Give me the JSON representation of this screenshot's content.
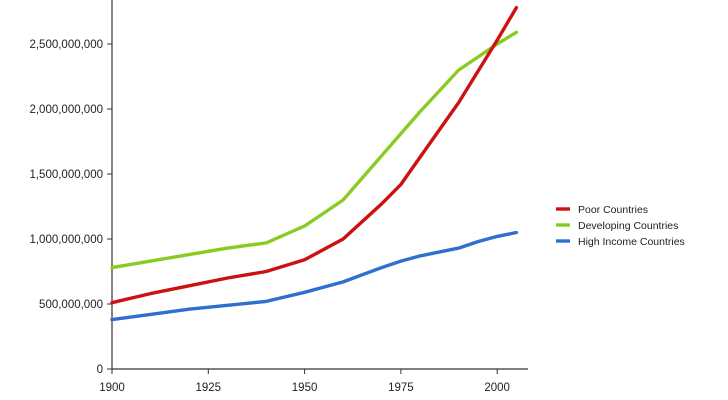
{
  "chart_data": {
    "type": "line",
    "title": "",
    "xlabel": "",
    "ylabel": "",
    "xlim": [
      1900,
      2008
    ],
    "ylim": [
      0,
      2800000000
    ],
    "grid": false,
    "legend_position": "right",
    "x_ticks": [
      1900,
      1925,
      1950,
      1975,
      2000
    ],
    "x_tick_labels": [
      "1900",
      "1925",
      "1950",
      "1975",
      "2000"
    ],
    "y_ticks": [
      0,
      500000000,
      1000000000,
      1500000000,
      2000000000,
      2500000000
    ],
    "y_tick_labels": [
      "0",
      "500,000,000",
      "1,000,000,000",
      "1,500,000,000",
      "2,000,000,000",
      "2,500,000,000"
    ],
    "series": [
      {
        "name": "Poor Countries",
        "color": "#cc1111",
        "x": [
          1900,
          1910,
          1920,
          1930,
          1940,
          1950,
          1960,
          1970,
          1975,
          1980,
          1990,
          2000,
          2005
        ],
        "y": [
          510000000,
          580000000,
          640000000,
          700000000,
          750000000,
          840000000,
          1000000000,
          1270000000,
          1420000000,
          1630000000,
          2050000000,
          2530000000,
          2780000000
        ]
      },
      {
        "name": "Developing Countries",
        "color": "#88cc22",
        "x": [
          1900,
          1910,
          1920,
          1930,
          1940,
          1950,
          1960,
          1970,
          1980,
          1990,
          2000,
          2005
        ],
        "y": [
          780000000,
          830000000,
          880000000,
          930000000,
          970000000,
          1100000000,
          1300000000,
          1640000000,
          1980000000,
          2300000000,
          2500000000,
          2590000000
        ]
      },
      {
        "name": "High Income Countries",
        "color": "#2f6fd0",
        "x": [
          1900,
          1910,
          1920,
          1930,
          1940,
          1950,
          1960,
          1970,
          1975,
          1980,
          1990,
          1995,
          2000,
          2005
        ],
        "y": [
          380000000,
          420000000,
          460000000,
          490000000,
          520000000,
          590000000,
          670000000,
          780000000,
          830000000,
          870000000,
          930000000,
          980000000,
          1020000000,
          1050000000
        ]
      }
    ]
  }
}
